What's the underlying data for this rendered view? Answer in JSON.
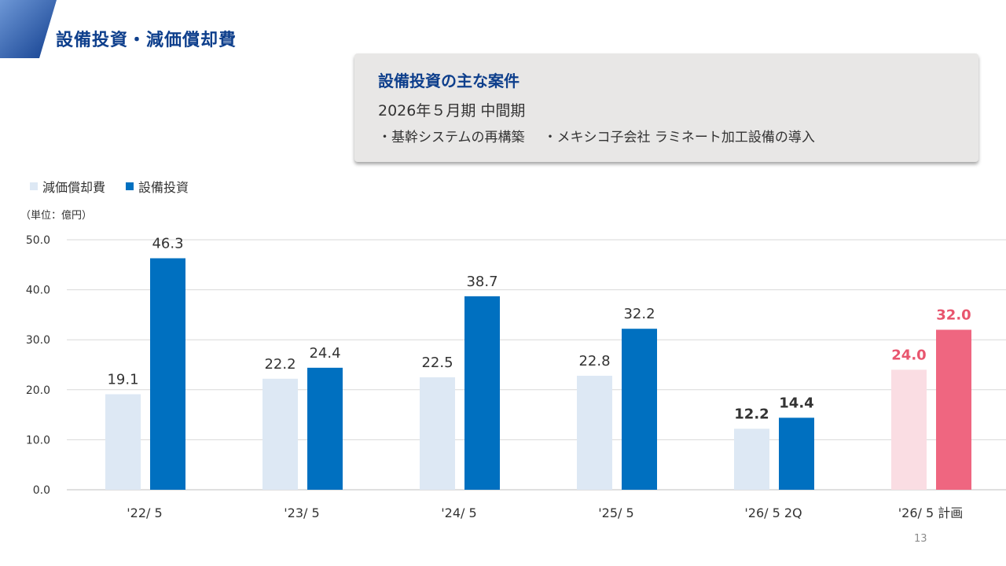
{
  "header": {
    "title": "設備投資・減価償却費"
  },
  "info_box": {
    "heading": "設備投資の主な案件",
    "period": "2026年５月期 中間期",
    "items": [
      "・基幹システムの再構築",
      "・メキシコ子会社 ラミネート加工設備の導入"
    ]
  },
  "colors": {
    "brand_blue": "#0e3f8c",
    "depreciation": "#dde8f4",
    "capex": "#0070c0",
    "plan_depreciation": "#fadde3",
    "plan_capex": "#ef6680",
    "plan_label": "#e8556e"
  },
  "legend": [
    {
      "label": "減価償却費",
      "color": "#dde8f4"
    },
    {
      "label": "設備投資",
      "color": "#0070c0"
    }
  ],
  "unit_label": "（単位：億円）",
  "page_number": "13",
  "chart_data": {
    "type": "bar",
    "categories": [
      "'22/ 5",
      "'23/ 5",
      "'24/ 5",
      "'25/ 5",
      "'26/ 5  2Q",
      "'26/ 5 計画"
    ],
    "series": [
      {
        "name": "減価償却費",
        "values": [
          19.1,
          22.2,
          22.5,
          22.8,
          12.2,
          24.0
        ]
      },
      {
        "name": "設備投資",
        "values": [
          46.3,
          24.4,
          38.7,
          32.2,
          14.4,
          32.0
        ]
      }
    ],
    "value_labels": [
      [
        "19.1",
        "22.2",
        "22.5",
        "22.8",
        "12.2",
        "24.0"
      ],
      [
        "46.3",
        "24.4",
        "38.7",
        "32.2",
        "14.4",
        "32.0"
      ]
    ],
    "y_ticks": [
      "0.0",
      "10.0",
      "20.0",
      "30.0",
      "40.0",
      "50.0"
    ],
    "ylim": [
      0,
      50
    ],
    "grid": true,
    "legend_position": "top-left",
    "bold_label_categories": [
      4,
      5
    ],
    "highlight_category": 5
  }
}
